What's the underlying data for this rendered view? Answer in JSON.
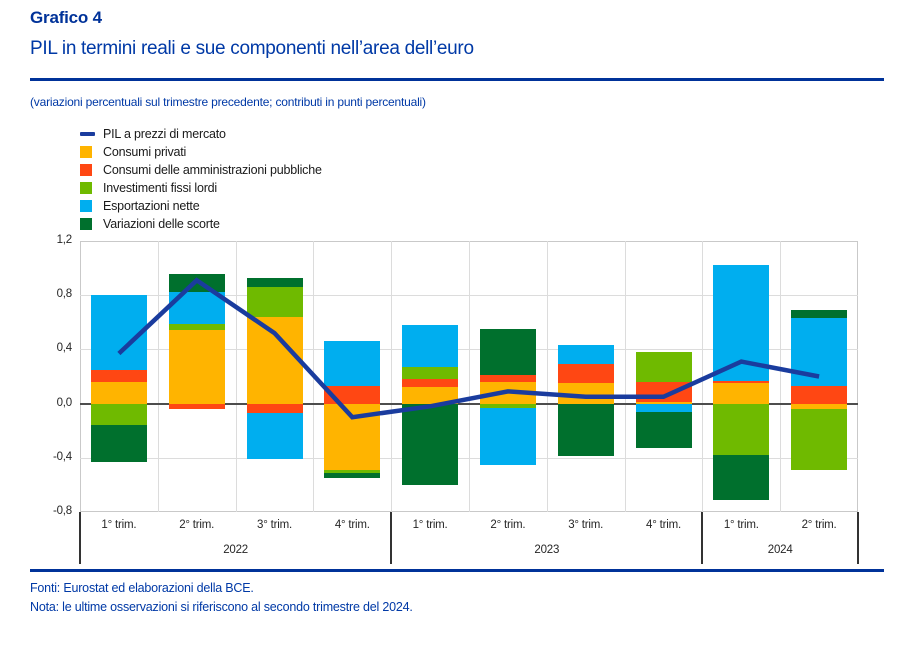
{
  "header": {
    "kicker": "Grafico 4",
    "title": "PIL in termini reali e sue componenti nell’area dell’euro",
    "subtitle": "(variazioni percentuali sul trimestre precedente; contributi in punti percentuali)"
  },
  "footer": {
    "fonti": "Fonti: Eurostat ed elaborazioni della BCE.",
    "nota": "Nota: le ultime osservazioni si riferiscono al secondo trimestre del 2024."
  },
  "colors": {
    "ecb_blue": "#003299",
    "gdp_line": "#1a3c9e",
    "consumi_privati": "#ffb400",
    "consumi_pa": "#ff4713",
    "investimenti": "#6fba00",
    "esportazioni": "#00aeef",
    "scorte": "#00702d",
    "zero_line": "#4d4d4d",
    "grid": "#dcdcdc"
  },
  "chart_data": {
    "type": "bar",
    "subtype": "stacked-bar-with-line",
    "categories": [
      "1° trim.",
      "2° trim.",
      "3° trim.",
      "4° trim.",
      "1° trim.",
      "2° trim.",
      "3° trim.",
      "4° trim.",
      "1° trim.",
      "2° trim."
    ],
    "year_groups": [
      {
        "label": "2022",
        "span": 4
      },
      {
        "label": "2023",
        "span": 4
      },
      {
        "label": "2024",
        "span": 2
      }
    ],
    "line": {
      "name": "PIL a prezzi di mercato",
      "values": [
        0.37,
        0.91,
        0.52,
        -0.1,
        -0.02,
        0.09,
        0.05,
        0.05,
        0.31,
        0.2
      ]
    },
    "series": [
      {
        "name": "Consumi privati",
        "color_key": "consumi_privati",
        "values": [
          0.16,
          0.54,
          0.64,
          -0.49,
          0.12,
          0.16,
          0.15,
          0.01,
          0.15,
          -0.04
        ]
      },
      {
        "name": "Consumi delle amministrazioni pubbliche",
        "color_key": "consumi_pa",
        "values": [
          0.09,
          -0.04,
          -0.07,
          0.13,
          0.06,
          0.05,
          0.14,
          0.15,
          0.02,
          0.13
        ]
      },
      {
        "name": "Investimenti fissi lordi",
        "color_key": "investimenti",
        "values": [
          -0.16,
          0.05,
          0.22,
          -0.02,
          0.09,
          -0.03,
          0.0,
          0.22,
          -0.38,
          -0.45
        ]
      },
      {
        "name": "Esportazioni nette",
        "color_key": "esportazioni",
        "values": [
          0.55,
          0.23,
          -0.34,
          0.33,
          0.31,
          -0.42,
          0.14,
          -0.06,
          0.85,
          0.5
        ]
      },
      {
        "name": "Variazioni delle scorte",
        "color_key": "scorte",
        "values": [
          -0.27,
          0.14,
          0.07,
          -0.04,
          -0.6,
          0.34,
          -0.39,
          -0.27,
          -0.33,
          0.06
        ]
      }
    ],
    "title": "PIL in termini reali e sue componenti nell’area dell’euro",
    "xlabel": "",
    "ylabel": "",
    "ylim": [
      -0.8,
      1.2
    ],
    "yticks": [
      {
        "value": 1.2,
        "label": "1,2"
      },
      {
        "value": 0.8,
        "label": "0,8"
      },
      {
        "value": 0.4,
        "label": "0,4"
      },
      {
        "value": 0.0,
        "label": "0,0"
      },
      {
        "value": -0.4,
        "label": "-0,4"
      },
      {
        "value": -0.8,
        "label": "-0,8"
      }
    ],
    "grid": true,
    "legend_position": "top-left"
  }
}
